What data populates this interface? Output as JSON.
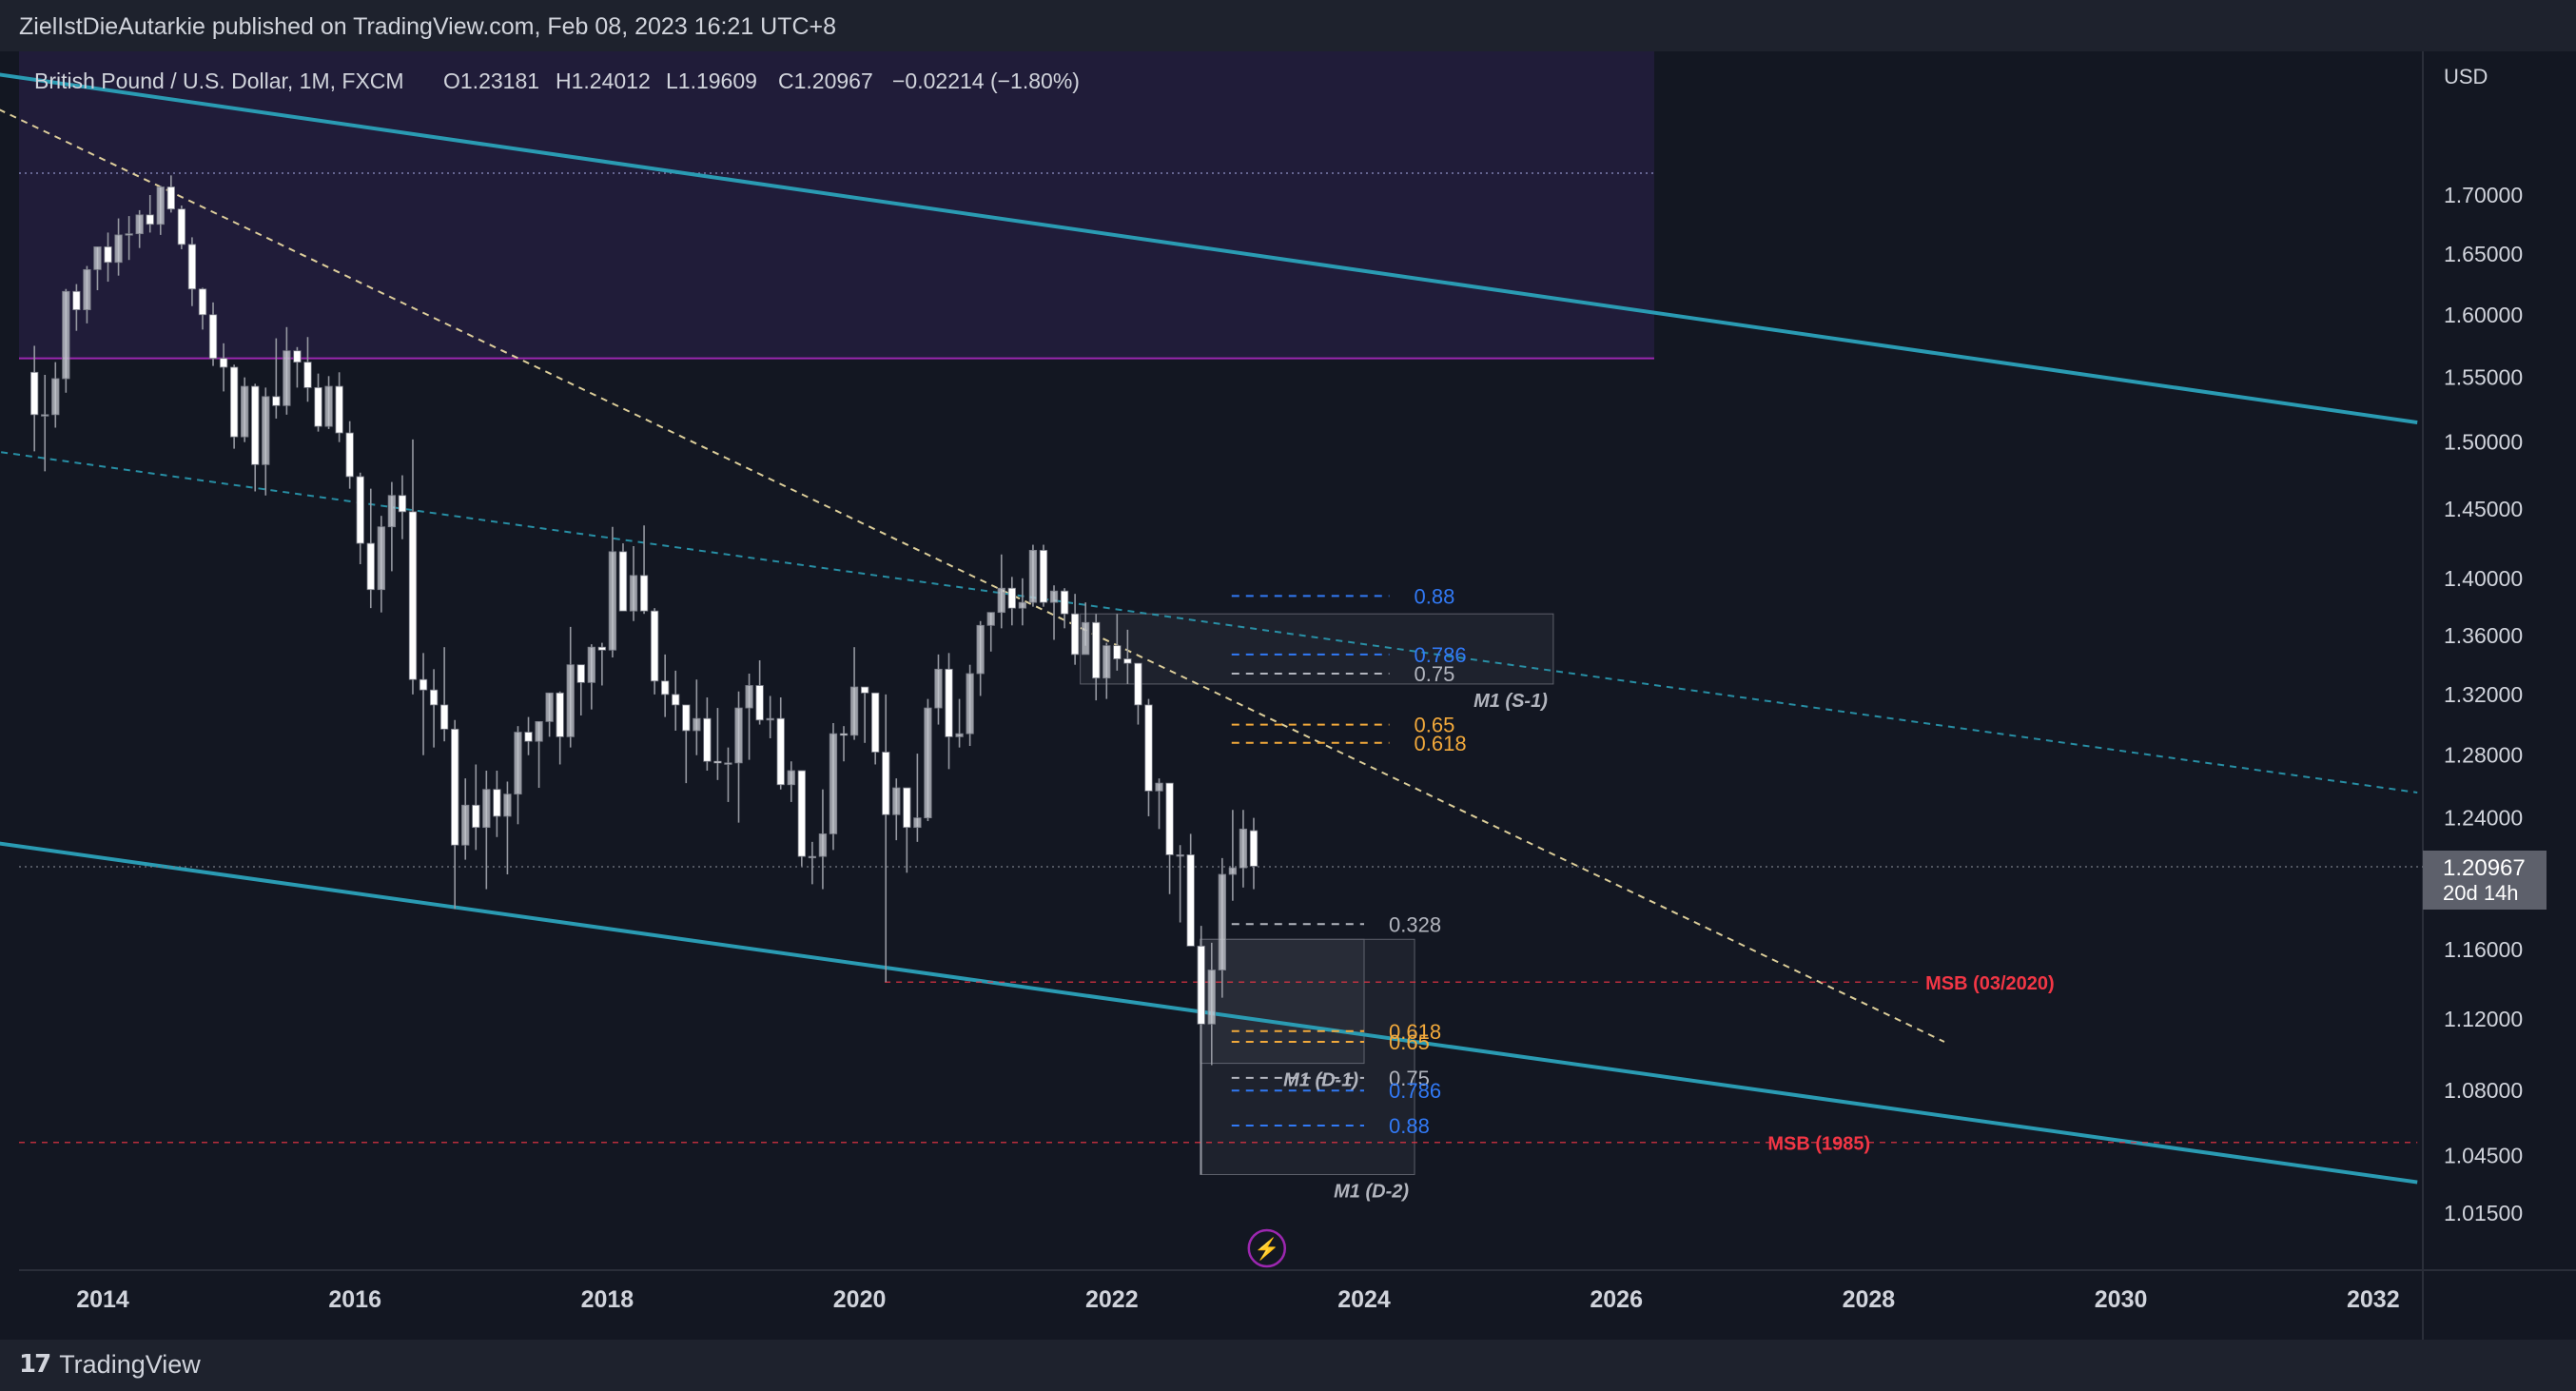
{
  "header": {
    "publisher_line": "ZielIstDieAutarkie published on TradingView.com, Feb 08, 2023 16:21 UTC+8"
  },
  "footer": {
    "brand": "TradingView",
    "logo_icon": "tradingview-logo-icon"
  },
  "legend": {
    "symbol": "British Pound / U.S. Dollar, 1M, FXCM",
    "open": "O1.23181",
    "high": "H1.24012",
    "low": "L1.19609",
    "close": "C1.20967",
    "change": "−0.02214 (−1.80%)"
  },
  "price_axis": {
    "currency": "USD",
    "last_price": "1.20967",
    "countdown": "20d 14h"
  },
  "chart_data": {
    "type": "candlestick",
    "title": "British Pound / U.S. Dollar, 1M, FXCM",
    "ylabel": "USD",
    "y_scale": "log",
    "ylim": [
      0.99,
      1.83
    ],
    "xlim": [
      2013.0,
      2032.35
    ],
    "y_ticks": [
      "1.70000",
      "1.65000",
      "1.60000",
      "1.55000",
      "1.50000",
      "1.45000",
      "1.40000",
      "1.36000",
      "1.32000",
      "1.28000",
      "1.24000",
      "1.20000",
      "1.16000",
      "1.12000",
      "1.08000",
      "1.04500",
      "1.01500"
    ],
    "x_ticks": [
      "2014",
      "2016",
      "2018",
      "2020",
      "2022",
      "2024",
      "2026",
      "2028",
      "2030",
      "2032"
    ],
    "grid": false,
    "colors": {
      "bull_candle": "#c9ccd3",
      "bear_candle": "#ffffff",
      "wick": "#9598a1",
      "channel": "#2a9bb3",
      "trend_dashed": "#f2e1a6",
      "msb": "#f23645",
      "fib_blue": "#3179f5",
      "fib_orange": "#f2a93b",
      "zone_purple": "#673ab7",
      "zone_line": "#9c27b0",
      "last_price_tag": "#5d606b"
    },
    "candles": [
      {
        "t": "2013-06",
        "o": 1.554,
        "h": 1.575,
        "l": 1.493,
        "c": 1.521
      },
      {
        "t": "2013-07",
        "o": 1.521,
        "h": 1.552,
        "l": 1.478,
        "c": 1.521
      },
      {
        "t": "2013-08",
        "o": 1.521,
        "h": 1.562,
        "l": 1.511,
        "c": 1.549
      },
      {
        "t": "2013-09",
        "o": 1.549,
        "h": 1.621,
        "l": 1.538,
        "c": 1.619
      },
      {
        "t": "2013-10",
        "o": 1.619,
        "h": 1.625,
        "l": 1.587,
        "c": 1.604
      },
      {
        "t": "2013-11",
        "o": 1.604,
        "h": 1.64,
        "l": 1.593,
        "c": 1.637
      },
      {
        "t": "2013-12",
        "o": 1.637,
        "h": 1.656,
        "l": 1.62,
        "c": 1.656
      },
      {
        "t": "2014-01",
        "o": 1.656,
        "h": 1.668,
        "l": 1.627,
        "c": 1.643
      },
      {
        "t": "2014-02",
        "o": 1.643,
        "h": 1.68,
        "l": 1.632,
        "c": 1.666
      },
      {
        "t": "2014-03",
        "o": 1.666,
        "h": 1.682,
        "l": 1.645,
        "c": 1.667
      },
      {
        "t": "2014-04",
        "o": 1.667,
        "h": 1.687,
        "l": 1.655,
        "c": 1.683
      },
      {
        "t": "2014-05",
        "o": 1.683,
        "h": 1.7,
        "l": 1.668,
        "c": 1.675
      },
      {
        "t": "2014-06",
        "o": 1.675,
        "h": 1.708,
        "l": 1.666,
        "c": 1.707
      },
      {
        "t": "2014-07",
        "o": 1.707,
        "h": 1.717,
        "l": 1.685,
        "c": 1.688
      },
      {
        "t": "2014-08",
        "o": 1.688,
        "h": 1.691,
        "l": 1.654,
        "c": 1.658
      },
      {
        "t": "2014-09",
        "o": 1.658,
        "h": 1.664,
        "l": 1.607,
        "c": 1.621
      },
      {
        "t": "2014-10",
        "o": 1.621,
        "h": 1.622,
        "l": 1.588,
        "c": 1.6
      },
      {
        "t": "2014-11",
        "o": 1.6,
        "h": 1.61,
        "l": 1.559,
        "c": 1.565
      },
      {
        "t": "2014-12",
        "o": 1.565,
        "h": 1.577,
        "l": 1.539,
        "c": 1.558
      },
      {
        "t": "2015-01",
        "o": 1.558,
        "h": 1.56,
        "l": 1.495,
        "c": 1.504
      },
      {
        "t": "2015-02",
        "o": 1.504,
        "h": 1.55,
        "l": 1.5,
        "c": 1.543
      },
      {
        "t": "2015-03",
        "o": 1.543,
        "h": 1.545,
        "l": 1.463,
        "c": 1.483
      },
      {
        "t": "2015-04",
        "o": 1.483,
        "h": 1.542,
        "l": 1.46,
        "c": 1.535
      },
      {
        "t": "2015-05",
        "o": 1.535,
        "h": 1.581,
        "l": 1.518,
        "c": 1.528
      },
      {
        "t": "2015-06",
        "o": 1.528,
        "h": 1.59,
        "l": 1.521,
        "c": 1.571
      },
      {
        "t": "2015-07",
        "o": 1.571,
        "h": 1.574,
        "l": 1.542,
        "c": 1.562
      },
      {
        "t": "2015-08",
        "o": 1.562,
        "h": 1.582,
        "l": 1.531,
        "c": 1.542
      },
      {
        "t": "2015-09",
        "o": 1.542,
        "h": 1.553,
        "l": 1.508,
        "c": 1.512
      },
      {
        "t": "2015-10",
        "o": 1.512,
        "h": 1.551,
        "l": 1.51,
        "c": 1.543
      },
      {
        "t": "2015-11",
        "o": 1.543,
        "h": 1.554,
        "l": 1.5,
        "c": 1.507
      },
      {
        "t": "2015-12",
        "o": 1.507,
        "h": 1.516,
        "l": 1.465,
        "c": 1.474
      },
      {
        "t": "2016-01",
        "o": 1.474,
        "h": 1.477,
        "l": 1.41,
        "c": 1.425
      },
      {
        "t": "2016-02",
        "o": 1.425,
        "h": 1.465,
        "l": 1.379,
        "c": 1.392
      },
      {
        "t": "2016-03",
        "o": 1.392,
        "h": 1.445,
        "l": 1.376,
        "c": 1.437
      },
      {
        "t": "2016-04",
        "o": 1.437,
        "h": 1.47,
        "l": 1.405,
        "c": 1.46
      },
      {
        "t": "2016-05",
        "o": 1.46,
        "h": 1.475,
        "l": 1.428,
        "c": 1.448
      },
      {
        "t": "2016-06",
        "o": 1.448,
        "h": 1.502,
        "l": 1.32,
        "c": 1.33
      },
      {
        "t": "2016-07",
        "o": 1.33,
        "h": 1.348,
        "l": 1.28,
        "c": 1.323
      },
      {
        "t": "2016-08",
        "o": 1.323,
        "h": 1.337,
        "l": 1.285,
        "c": 1.313
      },
      {
        "t": "2016-09",
        "o": 1.313,
        "h": 1.352,
        "l": 1.289,
        "c": 1.297
      },
      {
        "t": "2016-10",
        "o": 1.297,
        "h": 1.303,
        "l": 1.184,
        "c": 1.223
      },
      {
        "t": "2016-11",
        "o": 1.223,
        "h": 1.265,
        "l": 1.214,
        "c": 1.248
      },
      {
        "t": "2016-12",
        "o": 1.248,
        "h": 1.274,
        "l": 1.22,
        "c": 1.234
      },
      {
        "t": "2017-01",
        "o": 1.234,
        "h": 1.27,
        "l": 1.196,
        "c": 1.258
      },
      {
        "t": "2017-02",
        "o": 1.258,
        "h": 1.27,
        "l": 1.228,
        "c": 1.241
      },
      {
        "t": "2017-03",
        "o": 1.241,
        "h": 1.263,
        "l": 1.205,
        "c": 1.255
      },
      {
        "t": "2017-04",
        "o": 1.255,
        "h": 1.299,
        "l": 1.236,
        "c": 1.295
      },
      {
        "t": "2017-05",
        "o": 1.295,
        "h": 1.305,
        "l": 1.28,
        "c": 1.289
      },
      {
        "t": "2017-06",
        "o": 1.289,
        "h": 1.302,
        "l": 1.259,
        "c": 1.302
      },
      {
        "t": "2017-07",
        "o": 1.302,
        "h": 1.321,
        "l": 1.292,
        "c": 1.321
      },
      {
        "t": "2017-08",
        "o": 1.321,
        "h": 1.322,
        "l": 1.274,
        "c": 1.292
      },
      {
        "t": "2017-09",
        "o": 1.292,
        "h": 1.366,
        "l": 1.285,
        "c": 1.34
      },
      {
        "t": "2017-10",
        "o": 1.34,
        "h": 1.339,
        "l": 1.306,
        "c": 1.328
      },
      {
        "t": "2017-11",
        "o": 1.328,
        "h": 1.354,
        "l": 1.31,
        "c": 1.352
      },
      {
        "t": "2017-12",
        "o": 1.352,
        "h": 1.355,
        "l": 1.326,
        "c": 1.35
      },
      {
        "t": "2018-01",
        "o": 1.35,
        "h": 1.437,
        "l": 1.345,
        "c": 1.419
      },
      {
        "t": "2018-02",
        "o": 1.419,
        "h": 1.425,
        "l": 1.377,
        "c": 1.377
      },
      {
        "t": "2018-03",
        "o": 1.377,
        "h": 1.423,
        "l": 1.37,
        "c": 1.402
      },
      {
        "t": "2018-04",
        "o": 1.402,
        "h": 1.438,
        "l": 1.375,
        "c": 1.377
      },
      {
        "t": "2018-05",
        "o": 1.377,
        "h": 1.379,
        "l": 1.32,
        "c": 1.329
      },
      {
        "t": "2018-06",
        "o": 1.329,
        "h": 1.347,
        "l": 1.305,
        "c": 1.32
      },
      {
        "t": "2018-07",
        "o": 1.32,
        "h": 1.336,
        "l": 1.296,
        "c": 1.313
      },
      {
        "t": "2018-08",
        "o": 1.313,
        "h": 1.31,
        "l": 1.262,
        "c": 1.296
      },
      {
        "t": "2018-09",
        "o": 1.296,
        "h": 1.33,
        "l": 1.28,
        "c": 1.304
      },
      {
        "t": "2018-10",
        "o": 1.304,
        "h": 1.318,
        "l": 1.27,
        "c": 1.276
      },
      {
        "t": "2018-11",
        "o": 1.276,
        "h": 1.311,
        "l": 1.264,
        "c": 1.275
      },
      {
        "t": "2018-12",
        "o": 1.275,
        "h": 1.285,
        "l": 1.25,
        "c": 1.275
      },
      {
        "t": "2019-01",
        "o": 1.275,
        "h": 1.322,
        "l": 1.237,
        "c": 1.311
      },
      {
        "t": "2019-02",
        "o": 1.311,
        "h": 1.334,
        "l": 1.277,
        "c": 1.326
      },
      {
        "t": "2019-03",
        "o": 1.326,
        "h": 1.343,
        "l": 1.3,
        "c": 1.303
      },
      {
        "t": "2019-04",
        "o": 1.303,
        "h": 1.319,
        "l": 1.291,
        "c": 1.304
      },
      {
        "t": "2019-05",
        "o": 1.304,
        "h": 1.318,
        "l": 1.258,
        "c": 1.261
      },
      {
        "t": "2019-06",
        "o": 1.261,
        "h": 1.276,
        "l": 1.25,
        "c": 1.27
      },
      {
        "t": "2019-07",
        "o": 1.27,
        "h": 1.27,
        "l": 1.21,
        "c": 1.216
      },
      {
        "t": "2019-08",
        "o": 1.216,
        "h": 1.225,
        "l": 1.199,
        "c": 1.216
      },
      {
        "t": "2019-09",
        "o": 1.216,
        "h": 1.258,
        "l": 1.196,
        "c": 1.23
      },
      {
        "t": "2019-10",
        "o": 1.23,
        "h": 1.301,
        "l": 1.22,
        "c": 1.294
      },
      {
        "t": "2019-11",
        "o": 1.294,
        "h": 1.299,
        "l": 1.276,
        "c": 1.293
      },
      {
        "t": "2019-12",
        "o": 1.293,
        "h": 1.352,
        "l": 1.29,
        "c": 1.325
      },
      {
        "t": "2020-01",
        "o": 1.325,
        "h": 1.321,
        "l": 1.288,
        "c": 1.321
      },
      {
        "t": "2020-02",
        "o": 1.321,
        "h": 1.32,
        "l": 1.274,
        "c": 1.282
      },
      {
        "t": "2020-03",
        "o": 1.282,
        "h": 1.32,
        "l": 1.141,
        "c": 1.242
      },
      {
        "t": "2020-04",
        "o": 1.242,
        "h": 1.265,
        "l": 1.226,
        "c": 1.259
      },
      {
        "t": "2020-05",
        "o": 1.259,
        "h": 1.255,
        "l": 1.206,
        "c": 1.234
      },
      {
        "t": "2020-06",
        "o": 1.234,
        "h": 1.281,
        "l": 1.225,
        "c": 1.24
      },
      {
        "t": "2020-07",
        "o": 1.24,
        "h": 1.317,
        "l": 1.238,
        "c": 1.311
      },
      {
        "t": "2020-08",
        "o": 1.311,
        "h": 1.347,
        "l": 1.3,
        "c": 1.337
      },
      {
        "t": "2020-09",
        "o": 1.337,
        "h": 1.348,
        "l": 1.271,
        "c": 1.292
      },
      {
        "t": "2020-10",
        "o": 1.292,
        "h": 1.317,
        "l": 1.285,
        "c": 1.294
      },
      {
        "t": "2020-11",
        "o": 1.294,
        "h": 1.34,
        "l": 1.286,
        "c": 1.334
      },
      {
        "t": "2020-12",
        "o": 1.334,
        "h": 1.37,
        "l": 1.319,
        "c": 1.367
      },
      {
        "t": "2021-01",
        "o": 1.367,
        "h": 1.376,
        "l": 1.349,
        "c": 1.376
      },
      {
        "t": "2021-02",
        "o": 1.376,
        "h": 1.417,
        "l": 1.365,
        "c": 1.393
      },
      {
        "t": "2021-03",
        "o": 1.393,
        "h": 1.401,
        "l": 1.367,
        "c": 1.379
      },
      {
        "t": "2021-04",
        "o": 1.379,
        "h": 1.4,
        "l": 1.367,
        "c": 1.383
      },
      {
        "t": "2021-05",
        "o": 1.383,
        "h": 1.424,
        "l": 1.38,
        "c": 1.42
      },
      {
        "t": "2021-06",
        "o": 1.42,
        "h": 1.424,
        "l": 1.38,
        "c": 1.383
      },
      {
        "t": "2021-07",
        "o": 1.383,
        "h": 1.395,
        "l": 1.357,
        "c": 1.391
      },
      {
        "t": "2021-08",
        "o": 1.391,
        "h": 1.393,
        "l": 1.365,
        "c": 1.375
      },
      {
        "t": "2021-09",
        "o": 1.375,
        "h": 1.389,
        "l": 1.34,
        "c": 1.347
      },
      {
        "t": "2021-10",
        "o": 1.347,
        "h": 1.383,
        "l": 1.353,
        "c": 1.369
      },
      {
        "t": "2021-11",
        "o": 1.369,
        "h": 1.375,
        "l": 1.316,
        "c": 1.331
      },
      {
        "t": "2021-12",
        "o": 1.331,
        "h": 1.355,
        "l": 1.317,
        "c": 1.353
      },
      {
        "t": "2022-01",
        "o": 1.353,
        "h": 1.375,
        "l": 1.336,
        "c": 1.344
      },
      {
        "t": "2022-02",
        "o": 1.344,
        "h": 1.364,
        "l": 1.327,
        "c": 1.341
      },
      {
        "t": "2022-03",
        "o": 1.341,
        "h": 1.339,
        "l": 1.3,
        "c": 1.313
      },
      {
        "t": "2022-04",
        "o": 1.313,
        "h": 1.317,
        "l": 1.241,
        "c": 1.257
      },
      {
        "t": "2022-05",
        "o": 1.257,
        "h": 1.265,
        "l": 1.233,
        "c": 1.262
      },
      {
        "t": "2022-06",
        "o": 1.262,
        "h": 1.26,
        "l": 1.193,
        "c": 1.217
      },
      {
        "t": "2022-07",
        "o": 1.217,
        "h": 1.223,
        "l": 1.176,
        "c": 1.217
      },
      {
        "t": "2022-08",
        "o": 1.217,
        "h": 1.23,
        "l": 1.162,
        "c": 1.162
      },
      {
        "t": "2022-09",
        "o": 1.162,
        "h": 1.174,
        "l": 1.035,
        "c": 1.117
      },
      {
        "t": "2022-10",
        "o": 1.117,
        "h": 1.164,
        "l": 1.094,
        "c": 1.148
      },
      {
        "t": "2022-11",
        "o": 1.148,
        "h": 1.215,
        "l": 1.132,
        "c": 1.205
      },
      {
        "t": "2022-12",
        "o": 1.205,
        "h": 1.245,
        "l": 1.189,
        "c": 1.209
      },
      {
        "t": "2023-01",
        "o": 1.209,
        "h": 1.245,
        "l": 1.197,
        "c": 1.233
      },
      {
        "t": "2023-02",
        "o": 1.232,
        "h": 1.24,
        "l": 1.196,
        "c": 1.21
      }
    ],
    "channel_lines": [
      {
        "from": {
          "t": 2013.0,
          "y": 1.81
        },
        "to": {
          "t": 2032.35,
          "y": 1.515
        }
      },
      {
        "from": {
          "t": 2013.0,
          "y": 1.226
        },
        "to": {
          "t": 2032.35,
          "y": 1.031
        }
      }
    ],
    "trend_lines": [
      {
        "style": "dashed",
        "color": "trend_dashed",
        "from": {
          "t": 2013.0,
          "y": 1.785
        },
        "to": {
          "t": 2028.6,
          "y": 1.107
        }
      },
      {
        "style": "dashed",
        "color": "channel",
        "from": {
          "t": 2013.0,
          "y": 1.495
        },
        "to": {
          "t": 2032.35,
          "y": 1.256
        }
      }
    ],
    "zones": [
      {
        "kind": "supply",
        "from": {
          "t": 2013.0,
          "y": 1.83
        },
        "to": {
          "t": 2026.3,
          "y": 1.565
        },
        "color": "zone_purple",
        "dotted_level": 1.719,
        "base_line": 1.565
      }
    ],
    "order_blocks": [
      {
        "label": "M1 (S-1)",
        "from": {
          "t": 2021.75,
          "y": 1.375
        },
        "to": {
          "t": 2025.5,
          "y": 1.327
        }
      },
      {
        "label": "M1 (D-1)",
        "from": {
          "t": 2022.7,
          "y": 1.166
        },
        "to": {
          "t": 2024.0,
          "y": 1.095
        }
      },
      {
        "label": "M1 (D-2)",
        "from": {
          "t": 2022.7,
          "y": 1.166
        },
        "to": {
          "t": 2024.4,
          "y": 1.035
        }
      }
    ],
    "fib_levels": [
      {
        "label": "0.88",
        "y": 1.3875,
        "color": "fib_blue",
        "from": 2022.95,
        "to": 2024.2
      },
      {
        "label": "0.786",
        "y": 1.347,
        "color": "fib_blue",
        "from": 2022.95,
        "to": 2024.2
      },
      {
        "label": "0.75",
        "y": 1.334,
        "color": "fib_white",
        "from": 2022.95,
        "to": 2024.2
      },
      {
        "label": "0.65",
        "y": 1.3,
        "color": "fib_orange",
        "from": 2022.95,
        "to": 2024.2
      },
      {
        "label": "0.618",
        "y": 1.288,
        "color": "fib_orange",
        "from": 2022.95,
        "to": 2024.2
      },
      {
        "label": "0.328",
        "y": 1.175,
        "color": "fib_white",
        "from": 2022.95,
        "to": 2024.0
      },
      {
        "label": "0.618",
        "y": 1.113,
        "color": "fib_orange",
        "from": 2022.95,
        "to": 2024.0
      },
      {
        "label": "0.65",
        "y": 1.107,
        "color": "fib_orange",
        "from": 2022.95,
        "to": 2024.0
      },
      {
        "label": "0.75",
        "y": 1.087,
        "color": "fib_white",
        "from": 2022.95,
        "to": 2024.0
      },
      {
        "label": "0.786",
        "y": 1.08,
        "color": "fib_blue",
        "from": 2022.95,
        "to": 2024.0
      },
      {
        "label": "0.88",
        "y": 1.061,
        "color": "fib_blue",
        "from": 2022.95,
        "to": 2024.0
      }
    ],
    "msb_lines": [
      {
        "label": "MSB (03/2020)",
        "y": 1.141,
        "from": 2020.2,
        "to": 2028.4
      },
      {
        "label": "MSB (1985)",
        "y": 1.052,
        "from": 2013.0,
        "to": 2032.35
      }
    ],
    "last_price": 1.20967,
    "annotations": [
      {
        "type": "lightning-icon",
        "t": 2022.95
      }
    ]
  }
}
